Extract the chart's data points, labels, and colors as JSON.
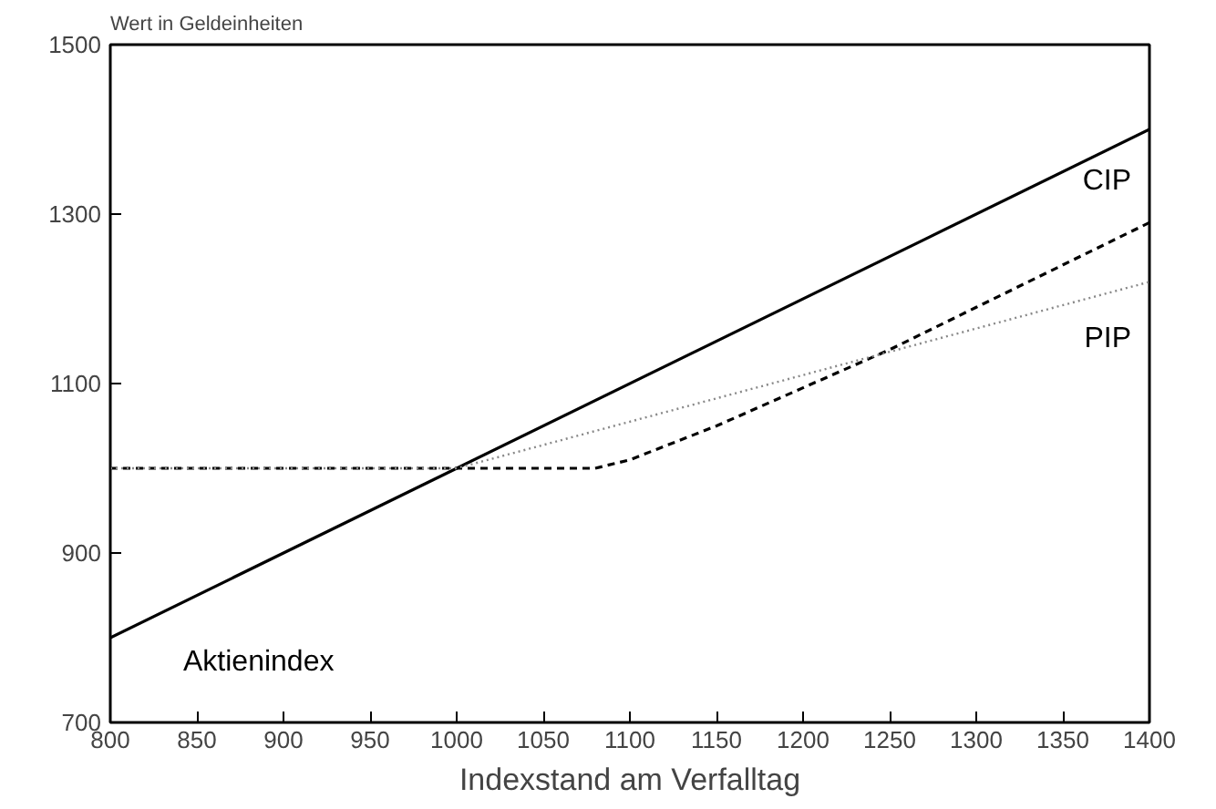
{
  "chart_data": {
    "type": "line",
    "xlabel": "Indexstand am Verfalltag",
    "ylabel": "Wert in Geldeinheiten",
    "xlim": [
      800,
      1400
    ],
    "ylim": [
      700,
      1500
    ],
    "xticks": [
      800,
      850,
      900,
      950,
      1000,
      1050,
      1100,
      1150,
      1200,
      1250,
      1300,
      1350,
      1400
    ],
    "yticks": [
      700,
      900,
      1100,
      1300,
      1500
    ],
    "grid": false,
    "marker": "none",
    "series": [
      {
        "name": "Aktienindex",
        "color": "#000000",
        "line_style": "solid",
        "x": [
          800,
          1400
        ],
        "values": [
          800,
          1400
        ]
      },
      {
        "name": "CIP",
        "color": "#000000",
        "line_style": "dashed",
        "x": [
          800,
          1080,
          1100,
          1150,
          1200,
          1250,
          1300,
          1350,
          1400
        ],
        "values": [
          1000,
          1000,
          1010,
          1050,
          1095,
          1140,
          1190,
          1240,
          1290
        ]
      },
      {
        "name": "PIP",
        "color": "#888888",
        "line_style": "dotted",
        "x": [
          800,
          1000,
          1400
        ],
        "values": [
          1000,
          1000,
          1220
        ]
      }
    ]
  }
}
